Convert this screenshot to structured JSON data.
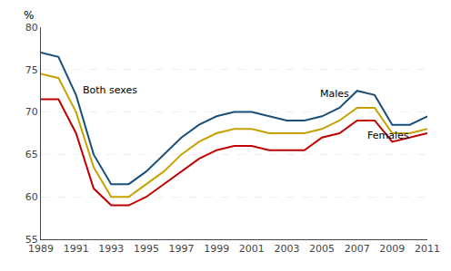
{
  "chart_data": {
    "type": "line",
    "x": [
      1989,
      1990,
      1991,
      1992,
      1993,
      1994,
      1995,
      1996,
      1997,
      1998,
      1999,
      2000,
      2001,
      2002,
      2003,
      2004,
      2005,
      2006,
      2007,
      2008,
      2009,
      2010,
      2011
    ],
    "series": [
      {
        "name": "Males",
        "color": "#1a4f7a",
        "values": [
          77.0,
          76.5,
          72.0,
          65.0,
          61.5,
          61.5,
          63.0,
          65.0,
          67.0,
          68.5,
          69.5,
          70.0,
          70.0,
          69.5,
          69.0,
          69.0,
          69.5,
          70.5,
          72.5,
          72.0,
          68.5,
          68.5,
          69.5
        ]
      },
      {
        "name": "Both sexes",
        "color": "#c8a000",
        "values": [
          74.5,
          74.0,
          70.0,
          63.5,
          60.0,
          60.0,
          61.5,
          63.0,
          65.0,
          66.5,
          67.5,
          68.0,
          68.0,
          67.5,
          67.5,
          67.5,
          68.0,
          69.0,
          70.5,
          70.5,
          67.5,
          67.5,
          68.0
        ]
      },
      {
        "name": "Females",
        "color": "#c00000",
        "values": [
          71.5,
          71.5,
          67.5,
          61.0,
          59.0,
          59.0,
          60.0,
          61.5,
          63.0,
          64.5,
          65.5,
          66.0,
          66.0,
          65.5,
          65.5,
          65.5,
          67.0,
          67.5,
          69.0,
          69.0,
          66.5,
          67.0,
          67.5
        ]
      }
    ],
    "annotations": [
      {
        "text": "Both sexes",
        "x": 1991.3,
        "y": 73.5
      },
      {
        "text": "Males",
        "x": 2004.8,
        "y": 71.2
      },
      {
        "text": "Females",
        "x": 2007.5,
        "y": 68.1
      }
    ],
    "ylabel": "%",
    "xlim": [
      1989,
      2011
    ],
    "xticks": [
      1989,
      1991,
      1993,
      1995,
      1997,
      1999,
      2001,
      2003,
      2005,
      2007,
      2009,
      2011
    ],
    "ylim": [
      55,
      80
    ],
    "yticks": [
      55,
      60,
      65,
      70,
      75,
      80
    ],
    "grid": true
  }
}
